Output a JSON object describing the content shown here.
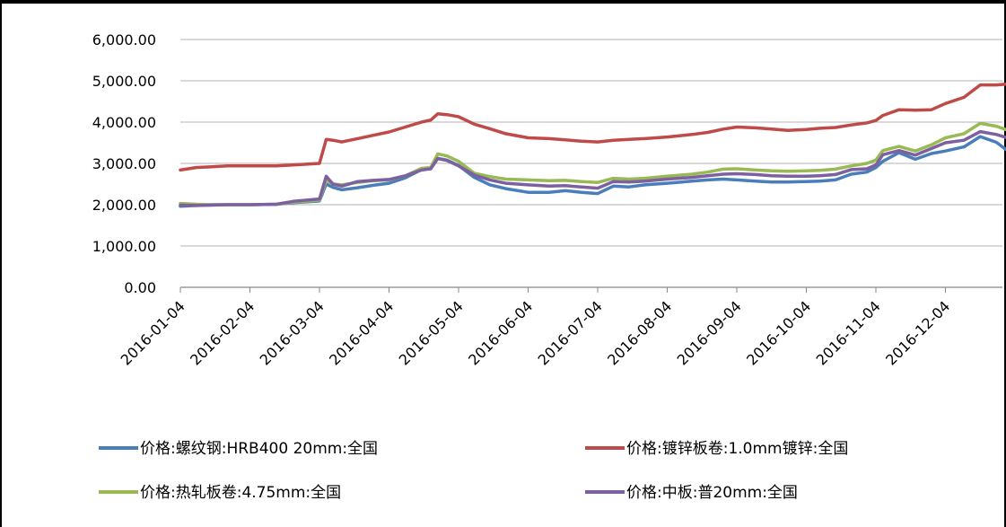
{
  "chart_data": {
    "type": "line",
    "title": "",
    "xlabel": "",
    "ylabel": "",
    "ylim": [
      0,
      6000
    ],
    "y_ticks": [
      "0.00",
      "1,000.00",
      "2,000.00",
      "3,000.00",
      "4,000.00",
      "5,000.00",
      "6,000.00"
    ],
    "y_tick_values": [
      0,
      1000,
      2000,
      3000,
      4000,
      5000,
      6000
    ],
    "x_tick_labels": [
      "2016-01-04",
      "2016-02-04",
      "2016-03-04",
      "2016-04-04",
      "2016-05-04",
      "2016-06-04",
      "2016-07-04",
      "2016-08-04",
      "2016-09-04",
      "2016-10-04",
      "2016-11-04",
      "2016-12-04"
    ],
    "grid": true,
    "legend_position": "bottom",
    "x": [
      "2016-01-04",
      "2016-01-11",
      "2016-01-18",
      "2016-01-25",
      "2016-02-04",
      "2016-02-15",
      "2016-02-22",
      "2016-03-04",
      "2016-03-07",
      "2016-03-10",
      "2016-03-14",
      "2016-03-21",
      "2016-03-28",
      "2016-04-04",
      "2016-04-11",
      "2016-04-18",
      "2016-04-22",
      "2016-04-25",
      "2016-04-29",
      "2016-05-04",
      "2016-05-11",
      "2016-05-18",
      "2016-05-25",
      "2016-06-04",
      "2016-06-13",
      "2016-06-20",
      "2016-06-27",
      "2016-07-04",
      "2016-07-11",
      "2016-07-18",
      "2016-07-25",
      "2016-08-04",
      "2016-08-15",
      "2016-08-22",
      "2016-08-29",
      "2016-09-04",
      "2016-09-12",
      "2016-09-19",
      "2016-09-26",
      "2016-10-04",
      "2016-10-10",
      "2016-10-17",
      "2016-10-24",
      "2016-10-31",
      "2016-11-04",
      "2016-11-07",
      "2016-11-14",
      "2016-11-21",
      "2016-11-28",
      "2016-12-04",
      "2016-12-12",
      "2016-12-19",
      "2016-12-26",
      "2016-12-30"
    ],
    "series": [
      {
        "name": "价格:螺纹钢:HRB400 20mm:全国",
        "color": "#4a7ebb",
        "values": [
          1960,
          1980,
          2000,
          2000,
          2000,
          2010,
          2050,
          2090,
          2500,
          2420,
          2360,
          2410,
          2470,
          2520,
          2650,
          2850,
          2880,
          3120,
          3080,
          2950,
          2660,
          2480,
          2390,
          2300,
          2300,
          2340,
          2300,
          2270,
          2450,
          2430,
          2480,
          2520,
          2570,
          2600,
          2620,
          2600,
          2570,
          2550,
          2550,
          2560,
          2570,
          2600,
          2740,
          2790,
          2900,
          3050,
          3260,
          3100,
          3240,
          3300,
          3400,
          3650,
          3510,
          3340
        ]
      },
      {
        "name": "价格:镀锌板卷:1.0mm镀锌:全国",
        "color": "#be4b48",
        "values": [
          2840,
          2900,
          2920,
          2940,
          2940,
          2940,
          2960,
          3000,
          3580,
          3560,
          3520,
          3600,
          3680,
          3760,
          3880,
          4000,
          4050,
          4200,
          4180,
          4130,
          3950,
          3840,
          3720,
          3620,
          3600,
          3570,
          3540,
          3520,
          3560,
          3580,
          3600,
          3640,
          3700,
          3750,
          3830,
          3880,
          3860,
          3830,
          3800,
          3820,
          3850,
          3870,
          3930,
          3980,
          4040,
          4160,
          4300,
          4290,
          4300,
          4450,
          4600,
          4900,
          4900,
          4920
        ]
      },
      {
        "name": "价格:热轧板卷:4.75mm:全国",
        "color": "#98b954",
        "values": [
          2030,
          2010,
          2000,
          2000,
          2000,
          2010,
          2060,
          2110,
          2600,
          2500,
          2480,
          2540,
          2580,
          2600,
          2700,
          2880,
          2900,
          3230,
          3180,
          3050,
          2760,
          2680,
          2620,
          2600,
          2580,
          2590,
          2560,
          2540,
          2640,
          2620,
          2640,
          2690,
          2740,
          2790,
          2860,
          2870,
          2840,
          2820,
          2810,
          2820,
          2830,
          2860,
          2940,
          3000,
          3080,
          3310,
          3410,
          3300,
          3450,
          3620,
          3720,
          3970,
          3900,
          3820
        ]
      },
      {
        "name": "价格:中板:普20mm:全国",
        "color": "#7d60a0",
        "values": [
          1990,
          1980,
          1990,
          2000,
          2000,
          2010,
          2080,
          2140,
          2690,
          2500,
          2450,
          2560,
          2590,
          2610,
          2700,
          2840,
          2870,
          3120,
          3070,
          2940,
          2720,
          2600,
          2520,
          2480,
          2450,
          2460,
          2430,
          2400,
          2560,
          2550,
          2570,
          2620,
          2660,
          2700,
          2740,
          2750,
          2730,
          2700,
          2690,
          2690,
          2700,
          2730,
          2850,
          2870,
          2960,
          3210,
          3310,
          3200,
          3360,
          3500,
          3560,
          3770,
          3700,
          3630
        ]
      }
    ]
  }
}
